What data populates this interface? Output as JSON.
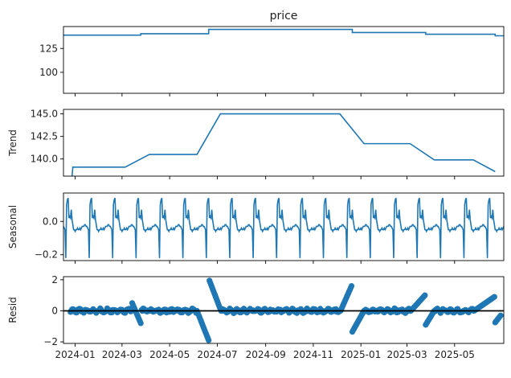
{
  "chart_data": {
    "type": "line",
    "x_axis": {
      "kind": "date",
      "range": [
        "2023-12-17",
        "2025-07-03"
      ],
      "tick_labels": [
        "2024-01",
        "2024-03",
        "2024-05",
        "2024-07",
        "2024-09",
        "2024-11",
        "2025-01",
        "2025-03",
        "2025-05"
      ],
      "tick_dates": [
        "2024-01-01",
        "2024-03-01",
        "2024-05-01",
        "2024-07-01",
        "2024-09-01",
        "2024-11-01",
        "2025-01-01",
        "2025-03-01",
        "2025-05-01"
      ]
    },
    "panels": [
      {
        "id": "price",
        "title": "price",
        "ylabel": "",
        "ylim": [
          78,
          148
        ],
        "yticks": [
          100,
          125
        ],
        "ytick_labels": [
          "100",
          "125"
        ],
        "series": {
          "style": "line",
          "steps": [
            {
              "start": "2023-12-17",
              "value": 139.0
            },
            {
              "start": "2024-03-25",
              "value": 140.5
            },
            {
              "start": "2024-06-20",
              "value": 145.0
            },
            {
              "start": "2024-12-21",
              "value": 141.7
            },
            {
              "start": "2025-03-25",
              "value": 139.9
            },
            {
              "start": "2025-06-22",
              "value": 138.3
            }
          ],
          "end": "2025-07-03"
        }
      },
      {
        "id": "trend",
        "title": "",
        "ylabel": "Trend",
        "ylim": [
          138.1,
          145.5
        ],
        "yticks": [
          140.0,
          142.5,
          145.0
        ],
        "ytick_labels": [
          "140.0",
          "142.5",
          "145.0"
        ],
        "series": {
          "style": "line",
          "points": [
            {
              "x": "2023-12-28",
              "y": 138.1
            },
            {
              "x": "2023-12-29",
              "y": 139.1
            },
            {
              "x": "2024-03-05",
              "y": 139.1
            },
            {
              "x": "2024-04-05",
              "y": 140.5
            },
            {
              "x": "2024-06-05",
              "y": 140.5
            },
            {
              "x": "2024-07-05",
              "y": 145.0
            },
            {
              "x": "2024-12-05",
              "y": 145.0
            },
            {
              "x": "2025-01-05",
              "y": 141.7
            },
            {
              "x": "2025-03-05",
              "y": 141.7
            },
            {
              "x": "2025-04-05",
              "y": 139.9
            },
            {
              "x": "2025-05-25",
              "y": 139.9
            },
            {
              "x": "2025-06-22",
              "y": 138.6
            }
          ]
        }
      },
      {
        "id": "seasonal",
        "title": "",
        "ylabel": "Seasonal",
        "ylim": [
          -0.235,
          0.17
        ],
        "yticks": [
          -0.2,
          0.0
        ],
        "ytick_labels": [
          "−0.2",
          "0.0"
        ],
        "series": {
          "style": "line",
          "period_days": 30,
          "pattern": [
            -0.03,
            -0.04,
            -0.05,
            -0.22,
            0.1,
            0.13,
            0.14,
            0.02,
            0.03,
            0.02,
            0.07,
            0.01,
            -0.02,
            -0.05,
            -0.05,
            -0.06,
            -0.05,
            -0.05,
            -0.04,
            -0.05,
            -0.05,
            -0.04,
            -0.05,
            -0.04,
            -0.03,
            -0.03,
            -0.03,
            -0.02,
            -0.02,
            -0.03
          ],
          "start": "2023-12-17",
          "end": "2025-07-03"
        }
      },
      {
        "id": "resid",
        "title": "",
        "ylabel": "Resid",
        "ylim": [
          -2.1,
          2.2
        ],
        "yticks": [
          -2,
          0,
          2
        ],
        "ytick_labels": [
          "−2",
          "0",
          "2"
        ],
        "baseline": 0,
        "series": {
          "style": "scatter",
          "segments": [
            {
              "x0": "2023-12-26",
              "x1": "2024-03-13",
              "base": 0.0,
              "noise": 0.08
            },
            {
              "x0": "2024-03-14",
              "x1": "2024-03-25",
              "base": 0.5,
              "slope_end": -0.8
            },
            {
              "x0": "2024-03-26",
              "x1": "2024-06-04",
              "base": 0.0,
              "noise": 0.08
            },
            {
              "x0": "2024-06-05",
              "x1": "2024-06-20",
              "base": 0.0,
              "slope_end": -1.9
            },
            {
              "x0": "2024-06-21",
              "x1": "2024-07-05",
              "base": 1.95,
              "slope_end": 0.1
            },
            {
              "x0": "2024-07-06",
              "x1": "2024-12-05",
              "base": 0.0,
              "noise": 0.08
            },
            {
              "x0": "2024-12-06",
              "x1": "2024-12-20",
              "base": 0.0,
              "slope_end": 1.6
            },
            {
              "x0": "2024-12-21",
              "x1": "2025-01-05",
              "base": -1.35,
              "slope_end": 0.0
            },
            {
              "x0": "2025-01-06",
              "x1": "2025-03-05",
              "base": 0.0,
              "noise": 0.08
            },
            {
              "x0": "2025-03-06",
              "x1": "2025-03-24",
              "base": 0.0,
              "slope_end": 1.0
            },
            {
              "x0": "2025-03-25",
              "x1": "2025-04-05",
              "base": -0.9,
              "slope_end": 0.0
            },
            {
              "x0": "2025-04-06",
              "x1": "2025-05-25",
              "base": 0.0,
              "noise": 0.08
            },
            {
              "x0": "2025-05-26",
              "x1": "2025-06-21",
              "base": 0.0,
              "slope_end": 0.9
            },
            {
              "x0": "2025-06-22",
              "x1": "2025-06-29",
              "base": -0.75,
              "slope_end": -0.3
            }
          ],
          "marker": "circle",
          "marker_size": 6
        }
      }
    ],
    "line_color": "#1f77b4",
    "baseline_color": "#000000",
    "grid": false
  }
}
